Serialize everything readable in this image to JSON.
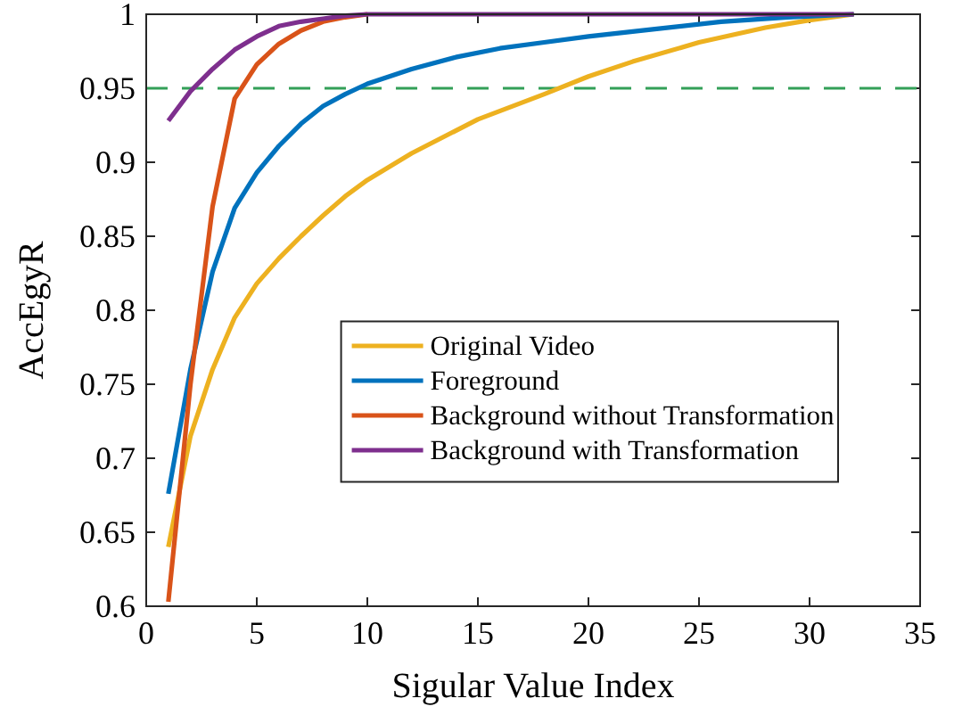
{
  "chart_data": {
    "type": "line",
    "xlabel": "Sigular Value Index",
    "ylabel": "AccEgyR",
    "xlim": [
      0,
      35
    ],
    "xticks": [
      0,
      5,
      10,
      15,
      20,
      25,
      30,
      35
    ],
    "ylim": [
      0.6,
      1
    ],
    "yticks": [
      0.6,
      0.65,
      0.7,
      0.75,
      0.8,
      0.85,
      0.9,
      0.95,
      1
    ],
    "grid": false,
    "legend": "right",
    "marker": "none",
    "line_style": "solid",
    "ref_lines": [
      {
        "axis": "y",
        "value": 0.95,
        "color": "#33a058",
        "line_style": "dashed"
      }
    ],
    "series": [
      {
        "name": "Original Video",
        "color": "#edb120",
        "x": [
          1,
          2,
          3,
          4,
          5,
          6,
          7,
          8,
          9,
          10,
          12,
          15,
          18,
          20,
          22,
          25,
          28,
          30,
          32
        ],
        "values": [
          0.64,
          0.715,
          0.76,
          0.795,
          0.818,
          0.835,
          0.85,
          0.864,
          0.877,
          0.888,
          0.906,
          0.929,
          0.946,
          0.958,
          0.968,
          0.981,
          0.991,
          0.996,
          1
        ]
      },
      {
        "name": "Foreground",
        "color": "#0072bd",
        "x": [
          1,
          2,
          3,
          4,
          5,
          6,
          7,
          8,
          9,
          10,
          12,
          14,
          16,
          18,
          20,
          23,
          26,
          29,
          32
        ],
        "values": [
          0.676,
          0.76,
          0.826,
          0.869,
          0.893,
          0.911,
          0.926,
          0.938,
          0.946,
          0.953,
          0.963,
          0.971,
          0.977,
          0.981,
          0.985,
          0.99,
          0.995,
          0.998,
          1
        ]
      },
      {
        "name": "Background without Transformation",
        "color": "#d95319",
        "x": [
          1,
          2,
          3,
          4,
          5,
          6,
          7,
          8,
          9,
          10
        ],
        "values": [
          0.603,
          0.75,
          0.87,
          0.943,
          0.966,
          0.98,
          0.989,
          0.995,
          0.998,
          1
        ]
      },
      {
        "name": "Background with Transformation",
        "color": "#7e2f8e",
        "x": [
          1,
          2,
          3,
          4,
          5,
          6,
          7,
          8,
          9,
          10,
          15,
          20,
          25,
          32
        ],
        "values": [
          0.928,
          0.948,
          0.963,
          0.976,
          0.985,
          0.992,
          0.995,
          0.997,
          0.999,
          1,
          1,
          1,
          1,
          1
        ]
      }
    ]
  }
}
